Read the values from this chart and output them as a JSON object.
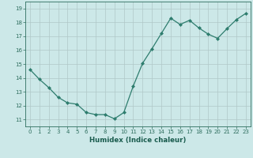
{
  "x": [
    0,
    1,
    2,
    3,
    4,
    5,
    6,
    7,
    8,
    9,
    10,
    11,
    12,
    13,
    14,
    15,
    16,
    17,
    18,
    19,
    20,
    21,
    22,
    23
  ],
  "y": [
    14.6,
    13.9,
    13.3,
    12.6,
    12.2,
    12.1,
    11.5,
    11.35,
    11.35,
    11.05,
    11.5,
    13.4,
    15.05,
    16.1,
    17.2,
    18.3,
    17.85,
    18.15,
    17.6,
    17.15,
    16.85,
    17.55,
    18.2,
    18.65
  ],
  "line_color": "#2e7d6e",
  "marker": "D",
  "marker_size": 2.0,
  "bg_color": "#cce8e8",
  "grid_color": "#b0c8c8",
  "xlabel": "Humidex (Indice chaleur)",
  "xlim": [
    -0.5,
    23.5
  ],
  "ylim": [
    10.5,
    19.5
  ],
  "yticks": [
    11,
    12,
    13,
    14,
    15,
    16,
    17,
    18,
    19
  ],
  "xticks": [
    0,
    1,
    2,
    3,
    4,
    5,
    6,
    7,
    8,
    9,
    10,
    11,
    12,
    13,
    14,
    15,
    16,
    17,
    18,
    19,
    20,
    21,
    22,
    23
  ],
  "tick_color": "#2e6e5e",
  "label_color": "#1a5c4e",
  "axis_color": "#2e6e5e",
  "tick_labelsize": 5.0,
  "xlabel_fontsize": 6.2
}
